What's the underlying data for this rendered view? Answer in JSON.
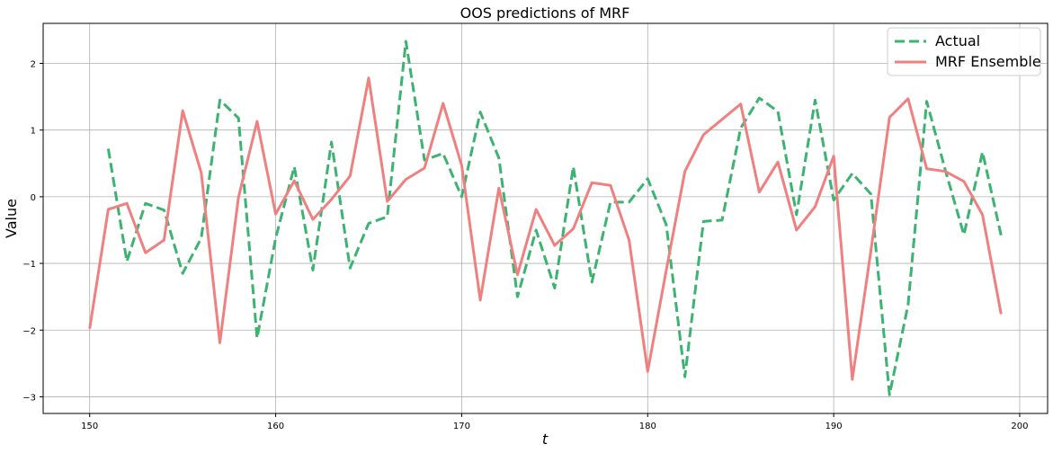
{
  "chart_data": {
    "type": "line",
    "title": "OOS predictions of MRF",
    "xlabel": "t",
    "ylabel": "Value",
    "xlim": [
      147.5,
      201.5
    ],
    "ylim": [
      -3.25,
      2.6
    ],
    "xticks": [
      150,
      160,
      170,
      180,
      190,
      200
    ],
    "yticks": [
      -3,
      -2,
      -1,
      0,
      1,
      2
    ],
    "grid": true,
    "legend_position": "top-right",
    "series": [
      {
        "name": "Actual",
        "style": "dashed",
        "color": "#3cb371",
        "x": [
          151,
          152,
          153,
          154,
          155,
          156,
          157,
          158,
          159,
          160,
          161,
          162,
          163,
          164,
          165,
          166,
          167,
          168,
          169,
          170,
          171,
          172,
          173,
          174,
          175,
          176,
          177,
          178,
          179,
          180,
          181,
          182,
          183,
          184,
          185,
          186,
          187,
          188,
          189,
          190,
          191,
          192,
          193,
          194,
          195,
          196,
          197,
          198,
          199
        ],
        "values": [
          0.72,
          -0.97,
          -0.1,
          -0.2,
          -1.15,
          -0.62,
          1.45,
          1.18,
          -2.12,
          -0.62,
          0.45,
          -1.1,
          0.82,
          -1.07,
          -0.4,
          -0.3,
          2.33,
          0.55,
          0.65,
          0.0,
          1.27,
          0.58,
          -1.5,
          -0.5,
          -1.37,
          0.45,
          -1.28,
          -0.08,
          -0.08,
          0.27,
          -0.42,
          -2.7,
          -0.37,
          -0.35,
          1.03,
          1.48,
          1.28,
          -0.27,
          1.45,
          -0.05,
          0.35,
          0.04,
          -2.97,
          -1.62,
          1.43,
          0.4,
          -0.57,
          0.67,
          -0.58
        ]
      },
      {
        "name": "MRF Ensemble",
        "style": "solid",
        "color": "#f08080",
        "x": [
          150,
          151,
          152,
          153,
          154,
          155,
          156,
          157,
          158,
          159,
          160,
          161,
          162,
          163,
          164,
          165,
          166,
          167,
          168,
          169,
          170,
          171,
          172,
          173,
          174,
          175,
          176,
          177,
          178,
          179,
          180,
          181,
          182,
          183,
          184,
          185,
          186,
          187,
          188,
          189,
          190,
          191,
          192,
          193,
          194,
          195,
          196,
          197,
          198,
          199
        ],
        "values": [
          -1.98,
          -0.19,
          -0.1,
          -0.84,
          -0.65,
          1.29,
          0.36,
          -2.19,
          -0.01,
          1.13,
          -0.26,
          0.24,
          -0.34,
          -0.04,
          0.31,
          1.78,
          -0.07,
          0.26,
          0.43,
          1.4,
          0.47,
          -1.55,
          0.13,
          -1.17,
          -0.19,
          -0.73,
          -0.48,
          0.21,
          0.17,
          -0.65,
          -2.62,
          -1.1,
          0.38,
          0.93,
          1.16,
          1.39,
          0.07,
          0.52,
          -0.5,
          -0.15,
          0.61,
          -2.74,
          -0.81,
          1.19,
          1.47,
          0.42,
          0.38,
          0.23,
          -0.27,
          -1.76
        ]
      }
    ]
  }
}
